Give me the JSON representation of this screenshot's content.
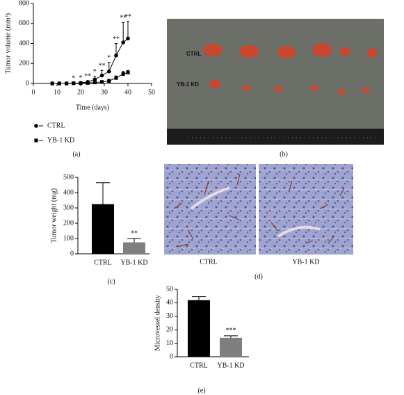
{
  "chart_data": [
    {
      "type": "line",
      "panel": "(a)",
      "xlabel": "Time (days)",
      "ylabel": "Tumor volume (mm³)",
      "x": [
        8,
        11,
        14,
        17,
        20,
        23,
        26,
        29,
        32,
        35,
        38,
        40
      ],
      "series": [
        {
          "name": "CTRL",
          "color": "#000000",
          "marker": "circle",
          "values": [
            0,
            0,
            0,
            2,
            5,
            15,
            40,
            80,
            120,
            280,
            410,
            450
          ],
          "errors": [
            0,
            0,
            0,
            2,
            5,
            10,
            30,
            50,
            90,
            120,
            200,
            170
          ]
        },
        {
          "name": "YB-1 KD",
          "color": "#000000",
          "marker": "square",
          "values": [
            0,
            0,
            0,
            2,
            3,
            5,
            10,
            15,
            25,
            55,
            95,
            110
          ],
          "errors": [
            0,
            0,
            0,
            1,
            2,
            3,
            5,
            10,
            15,
            20,
            25,
            20
          ]
        }
      ],
      "significance": [
        null,
        null,
        null,
        "*",
        "*",
        "**",
        "*",
        "**",
        "*",
        "**",
        "**",
        "**"
      ],
      "xlim": [
        0,
        50
      ],
      "xticks": [
        0,
        10,
        20,
        30,
        40,
        50
      ],
      "ylim": [
        0,
        800
      ],
      "yticks": [
        0,
        200,
        400,
        600,
        800
      ]
    },
    {
      "type": "bar",
      "panel": "(c)",
      "ylabel": "Tumor weight (mg)",
      "categories": [
        "CTRL",
        "YB-1 KD"
      ],
      "values": [
        325,
        75
      ],
      "errors": [
        140,
        25
      ],
      "colors": [
        "#000000",
        "#7f7f7f"
      ],
      "significance": [
        null,
        "**"
      ],
      "ylim": [
        0,
        500
      ],
      "yticks": [
        0,
        100,
        200,
        300,
        400,
        500
      ]
    },
    {
      "type": "bar",
      "panel": "(e)",
      "ylabel": "Microvessel density",
      "categories": [
        "CTRL",
        "YB-1 KD"
      ],
      "values": [
        42,
        14
      ],
      "errors": [
        2.5,
        1.5
      ],
      "colors": [
        "#000000",
        "#7f7f7f"
      ],
      "significance": [
        null,
        "***"
      ],
      "ylim": [
        0,
        50
      ],
      "yticks": [
        0,
        10,
        20,
        30,
        40,
        50
      ]
    }
  ],
  "photos": [
    {
      "panel": "(b)",
      "labels": [
        "CTRL",
        "YB-1 KD"
      ]
    },
    {
      "panel": "(d)",
      "labels": [
        "CTRL",
        "YB-1 KD"
      ]
    }
  ]
}
